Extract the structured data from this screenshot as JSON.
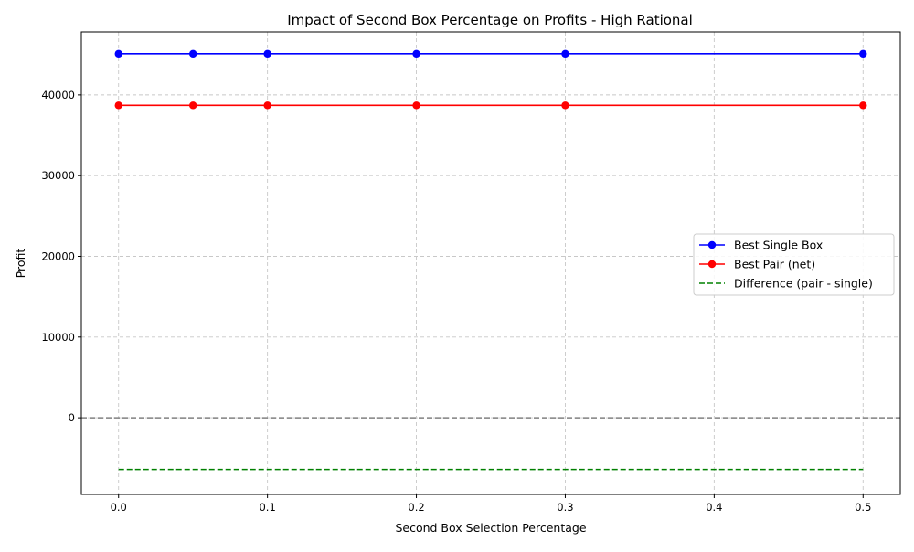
{
  "chart_data": {
    "type": "line",
    "title": "Impact of Second Box Percentage on Profits - High Rational",
    "xlabel": "Second Box Selection Percentage",
    "ylabel": "Profit",
    "xlim": [
      -0.025,
      0.525
    ],
    "ylim": [
      -9500,
      47800
    ],
    "x_ticks": [
      0.0,
      0.1,
      0.2,
      0.3,
      0.4,
      0.5
    ],
    "x_tick_labels": [
      "0.0",
      "0.1",
      "0.2",
      "0.3",
      "0.4",
      "0.5"
    ],
    "y_ticks": [
      0,
      10000,
      20000,
      30000,
      40000
    ],
    "y_tick_labels": [
      "0",
      "10000",
      "20000",
      "30000",
      "40000"
    ],
    "grid": true,
    "legend_position": "center-right",
    "reference_line": {
      "y": 0,
      "color": "#808080",
      "style": "dashed"
    },
    "series": [
      {
        "name": "Best Single Box",
        "color": "#0000ff",
        "style": "solid",
        "marker": "circle",
        "x": [
          0.0,
          0.05,
          0.1,
          0.2,
          0.3,
          0.5
        ],
        "y": [
          45100,
          45100,
          45100,
          45100,
          45100,
          45100
        ]
      },
      {
        "name": "Best Pair (net)",
        "color": "#ff0000",
        "style": "solid",
        "marker": "circle",
        "x": [
          0.0,
          0.05,
          0.1,
          0.2,
          0.3,
          0.5
        ],
        "y": [
          38700,
          38700,
          38700,
          38700,
          38700,
          38700
        ]
      },
      {
        "name": "Difference (pair - single)",
        "color": "#008000",
        "style": "dashed",
        "marker": "none",
        "x": [
          0.0,
          0.05,
          0.1,
          0.2,
          0.3,
          0.5
        ],
        "y": [
          -6400,
          -6400,
          -6400,
          -6400,
          -6400,
          -6400
        ]
      }
    ]
  }
}
